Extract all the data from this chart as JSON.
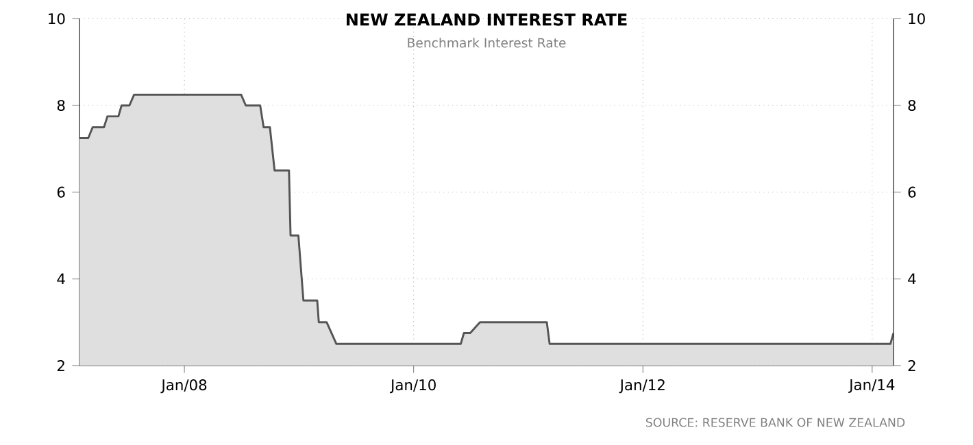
{
  "chart_data": {
    "type": "area",
    "title": "NEW ZEALAND INTEREST RATE",
    "subtitle": "Benchmark Interest Rate",
    "annotations": [
      "SOURCE: RESERVE BANK OF NEW ZEALAND"
    ],
    "x": [
      "2007-02-01",
      "2007-03-01",
      "2007-03-15",
      "2007-04-20",
      "2007-05-01",
      "2007-06-05",
      "2007-06-15",
      "2007-07-10",
      "2007-07-25",
      "2008-06-30",
      "2008-07-15",
      "2008-08-30",
      "2008-09-10",
      "2008-09-30",
      "2008-10-15",
      "2008-11-30",
      "2008-12-05",
      "2008-12-30",
      "2009-01-15",
      "2009-02-28",
      "2009-03-05",
      "2009-03-30",
      "2009-04-30",
      "2010-05-31",
      "2010-06-10",
      "2010-06-30",
      "2010-07-31",
      "2011-03-01",
      "2011-03-10",
      "2014-02-28",
      "2014-03-10"
    ],
    "series": [
      {
        "color": "#555555",
        "values": [
          7.25,
          7.25,
          7.5,
          7.5,
          7.75,
          7.75,
          8,
          8,
          8.25,
          8.25,
          8,
          8,
          7.5,
          7.5,
          6.5,
          6.5,
          5,
          5,
          3.5,
          3.5,
          3,
          3,
          2.5,
          2.5,
          2.75,
          2.75,
          3,
          3,
          2.5,
          2.5,
          2.75
        ]
      }
    ],
    "xlim": [
      "2007-02-01",
      "2014-03-10"
    ],
    "xticks": [
      {
        "value": "2008-01-01",
        "label": "Jan/08"
      },
      {
        "value": "2010-01-01",
        "label": "Jan/10"
      },
      {
        "value": "2012-01-01",
        "label": "Jan/12"
      },
      {
        "value": "2014-01-01",
        "label": "Jan/14"
      }
    ],
    "ylim": [
      2,
      10
    ],
    "yticks": [
      2,
      4,
      6,
      8,
      10
    ],
    "y2lim": [
      2,
      10
    ],
    "y2ticks": [
      2,
      4,
      6,
      8,
      10
    ],
    "grid": true
  }
}
